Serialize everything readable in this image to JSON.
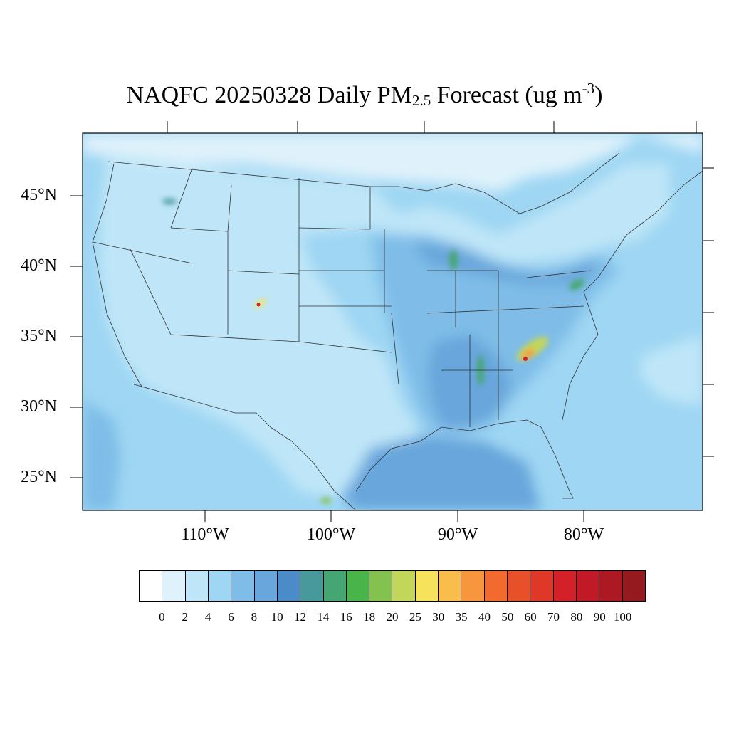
{
  "title": {
    "prefix": "NAQFC 20250328 Daily PM",
    "sub": "2.5",
    "middle": " Forecast (ug m",
    "sup": "-3",
    "suffix": ")"
  },
  "lat_labels": [
    "45°N",
    "40°N",
    "35°N",
    "30°N",
    "25°N"
  ],
  "lon_labels": [
    "110°W",
    "100°W",
    "90°W",
    "80°W"
  ],
  "colorbar": {
    "colors": [
      "#ffffff",
      "#dff2fb",
      "#bfe6f8",
      "#9ed6f3",
      "#7fbde8",
      "#68a6db",
      "#4a8bc8",
      "#47999c",
      "#46a673",
      "#48b44a",
      "#83c24f",
      "#c2d65a",
      "#f7e35b",
      "#f8bd4a",
      "#f7963d",
      "#f26a2e",
      "#e8502a",
      "#e03828",
      "#d42029",
      "#c11a26",
      "#ac1923",
      "#941a1f"
    ],
    "labels": [
      "0",
      "2",
      "4",
      "6",
      "8",
      "10",
      "12",
      "14",
      "16",
      "18",
      "20",
      "25",
      "30",
      "35",
      "40",
      "50",
      "60",
      "70",
      "80",
      "90",
      "100"
    ]
  },
  "map_colors": {
    "ocean": "#9ed6f3",
    "north": "#dff2fb",
    "land_light": "#bfe6f8",
    "mid": "#9ed6f3",
    "dark": "#7fbde8",
    "darker": "#68a6db",
    "darkest": "#4a8bc8",
    "hot_green": "#83c24f",
    "hot_yellow": "#f7e35b",
    "hot_orange": "#f7963d",
    "hot_red": "#d42029"
  }
}
